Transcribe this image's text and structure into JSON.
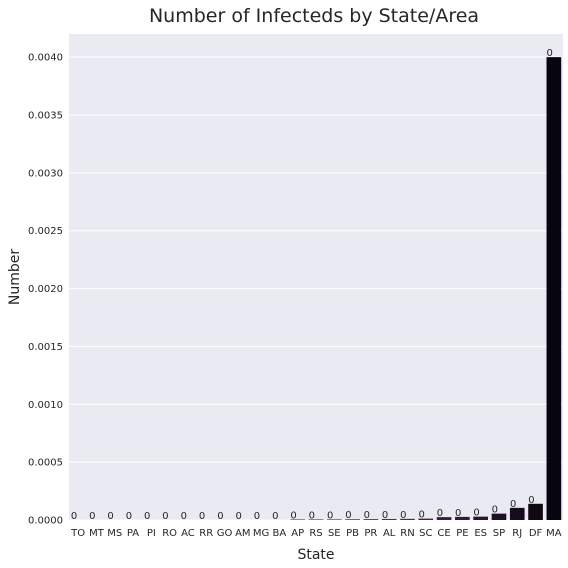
{
  "chart_data": {
    "type": "bar",
    "title": "Number of Infecteds by State/Area",
    "xlabel": "State",
    "ylabel": "Number",
    "ylim": [
      0,
      0.0042
    ],
    "yticks": [
      "0.0000",
      "0.0005",
      "0.0010",
      "0.0015",
      "0.0020",
      "0.0025",
      "0.0030",
      "0.0035",
      "0.0040"
    ],
    "grid": true,
    "categories": [
      "TO",
      "MT",
      "MS",
      "PA",
      "PI",
      "RO",
      "AC",
      "RR",
      "GO",
      "AM",
      "MG",
      "BA",
      "AP",
      "RS",
      "SE",
      "PB",
      "PR",
      "AL",
      "RN",
      "SC",
      "CE",
      "PE",
      "ES",
      "SP",
      "RJ",
      "DF",
      "MA"
    ],
    "values": [
      0,
      0,
      0,
      0,
      0,
      0,
      0,
      0,
      0,
      0,
      0,
      0,
      6e-06,
      6e-06,
      6e-06,
      7e-06,
      8e-06,
      9e-06,
      1e-05,
      1.2e-05,
      2.5e-05,
      2.7e-05,
      2.9e-05,
      5.5e-05,
      0.000105,
      0.00014,
      0.004
    ],
    "data_labels": [
      "0",
      "0",
      "0",
      "0",
      "0",
      "0",
      "0",
      "0",
      "0",
      "0",
      "0",
      "0",
      "0",
      "0",
      "0",
      "0",
      "0",
      "0",
      "0",
      "0",
      "0",
      "0",
      "0",
      "0",
      "0",
      "0",
      "0"
    ],
    "colors": [
      "#f6e8da",
      "#f5dac8",
      "#f3ccb4",
      "#f2bea1",
      "#f1b08e",
      "#f0a07b",
      "#ee926a",
      "#ec8360",
      "#e8735b",
      "#e36358",
      "#db5558",
      "#d0495a",
      "#c3405d",
      "#b3395f",
      "#a2325f",
      "#922c5e",
      "#82275b",
      "#712357",
      "#611f52",
      "#521b4c",
      "#441844",
      "#38163b",
      "#2c1331",
      "#211025",
      "#170c1b",
      "#0f0912",
      "#060510"
    ],
    "background": "#eaeaf2",
    "gridline_color": "#ffffff"
  }
}
